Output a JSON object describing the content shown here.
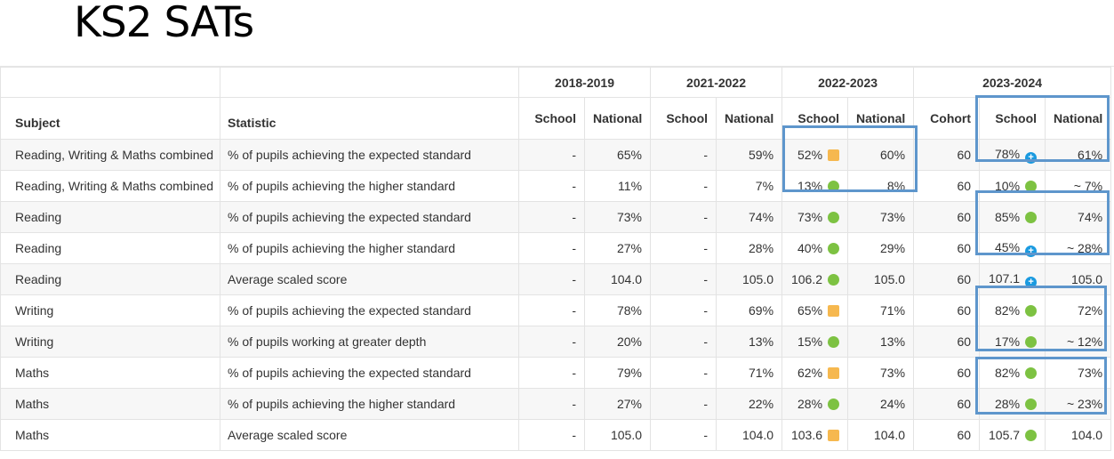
{
  "page_title": "KS2 SATs",
  "years": [
    "2018-2019",
    "2021-2022",
    "2022-2023",
    "2023-2024"
  ],
  "headers": {
    "subject": "Subject",
    "statistic": "Statistic",
    "school": "School",
    "national": "National",
    "cohort": "Cohort"
  },
  "indicator_colors": {
    "green": "#7dc242",
    "amber": "#f6b84f",
    "blue_plus": "#1a9ae0"
  },
  "highlight_color": "#5e96cc",
  "rows": [
    {
      "subject": "Reading, Writing & Maths combined",
      "statistic": "% of pupils achieving the expected standard",
      "s1819": "-",
      "n1819": "65%",
      "s2122": "-",
      "n2122": "59%",
      "s2223": "52%",
      "i2223": "amber-square-icon",
      "n2223": "60%",
      "cohort": "60",
      "s2324": "78%",
      "i2324": "plus-circle-icon",
      "n2324": "61%"
    },
    {
      "subject": "Reading, Writing & Maths combined",
      "statistic": "% of pupils achieving the higher standard",
      "s1819": "-",
      "n1819": "11%",
      "s2122": "-",
      "n2122": "7%",
      "s2223": "13%",
      "i2223": "green-circle-icon",
      "n2223": "8%",
      "cohort": "60",
      "s2324": "10%",
      "i2324": "green-circle-icon",
      "n2324": "~ 7%"
    },
    {
      "subject": "Reading",
      "statistic": "% of pupils achieving the expected standard",
      "s1819": "-",
      "n1819": "73%",
      "s2122": "-",
      "n2122": "74%",
      "s2223": "73%",
      "i2223": "green-circle-icon",
      "n2223": "73%",
      "cohort": "60",
      "s2324": "85%",
      "i2324": "green-circle-icon",
      "n2324": "74%"
    },
    {
      "subject": "Reading",
      "statistic": "% of pupils achieving the higher standard",
      "s1819": "-",
      "n1819": "27%",
      "s2122": "-",
      "n2122": "28%",
      "s2223": "40%",
      "i2223": "green-circle-icon",
      "n2223": "29%",
      "cohort": "60",
      "s2324": "45%",
      "i2324": "plus-circle-icon",
      "n2324": "~ 28%"
    },
    {
      "subject": "Reading",
      "statistic": "Average scaled score",
      "s1819": "-",
      "n1819": "104.0",
      "s2122": "-",
      "n2122": "105.0",
      "s2223": "106.2",
      "i2223": "green-circle-icon",
      "n2223": "105.0",
      "cohort": "60",
      "s2324": "107.1",
      "i2324": "plus-circle-icon",
      "n2324": "105.0"
    },
    {
      "subject": "Writing",
      "statistic": "% of pupils achieving the expected standard",
      "s1819": "-",
      "n1819": "78%",
      "s2122": "-",
      "n2122": "69%",
      "s2223": "65%",
      "i2223": "amber-square-icon",
      "n2223": "71%",
      "cohort": "60",
      "s2324": "82%",
      "i2324": "green-circle-icon",
      "n2324": "72%"
    },
    {
      "subject": "Writing",
      "statistic": "% of pupils working at greater depth",
      "s1819": "-",
      "n1819": "20%",
      "s2122": "-",
      "n2122": "13%",
      "s2223": "15%",
      "i2223": "green-circle-icon",
      "n2223": "13%",
      "cohort": "60",
      "s2324": "17%",
      "i2324": "green-circle-icon",
      "n2324": "~ 12%"
    },
    {
      "subject": "Maths",
      "statistic": "% of pupils achieving the expected standard",
      "s1819": "-",
      "n1819": "79%",
      "s2122": "-",
      "n2122": "71%",
      "s2223": "62%",
      "i2223": "amber-square-icon",
      "n2223": "73%",
      "cohort": "60",
      "s2324": "82%",
      "i2324": "green-circle-icon",
      "n2324": "73%"
    },
    {
      "subject": "Maths",
      "statistic": "% of pupils achieving the higher standard",
      "s1819": "-",
      "n1819": "27%",
      "s2122": "-",
      "n2122": "22%",
      "s2223": "28%",
      "i2223": "green-circle-icon",
      "n2223": "24%",
      "cohort": "60",
      "s2324": "28%",
      "i2324": "green-circle-icon",
      "n2324": "~ 23%"
    },
    {
      "subject": "Maths",
      "statistic": "Average scaled score",
      "s1819": "-",
      "n1819": "105.0",
      "s2122": "-",
      "n2122": "104.0",
      "s2223": "103.6",
      "i2223": "amber-square-icon",
      "n2223": "104.0",
      "cohort": "60",
      "s2324": "105.7",
      "i2324": "green-circle-icon",
      "n2324": "104.0"
    }
  ]
}
